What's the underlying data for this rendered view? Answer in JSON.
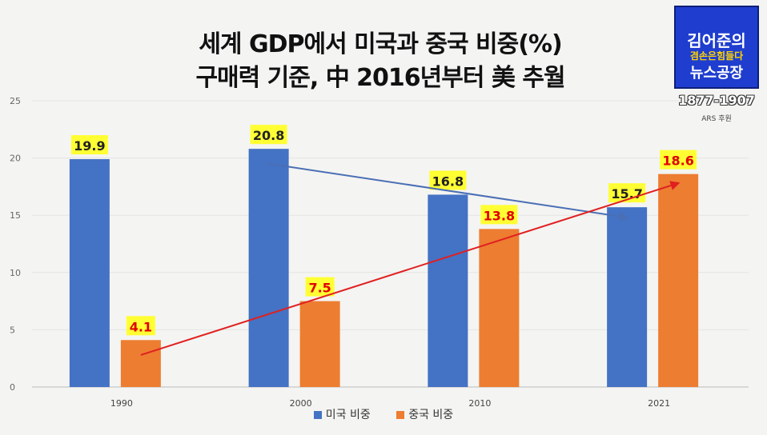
{
  "title_line1": "세계 GDP에서 미국과 중국 비중(%)",
  "title_line2": "구매력 기준, 中 2016년부터 美 추월",
  "logo": {
    "name": "김어준의",
    "slogan": "겸손은힘들다",
    "show": "뉴스공장",
    "years": "1877-1907",
    "credit": "ARS 후원"
  },
  "chart_data": {
    "type": "bar",
    "categories": [
      "1990",
      "2000",
      "2010",
      "2021"
    ],
    "series": [
      {
        "name": "미국 비중",
        "values": [
          19.9,
          20.8,
          16.8,
          15.7
        ],
        "color": "#4472c4",
        "label_color": "#222222"
      },
      {
        "name": "중국 비중",
        "values": [
          4.1,
          7.5,
          13.8,
          18.6
        ],
        "color": "#ed7d31",
        "label_color": "#e00000"
      }
    ],
    "ylim": [
      0,
      25
    ],
    "yticks": [
      0,
      5,
      10,
      15,
      20,
      25
    ],
    "grid": true,
    "legend": "bottom",
    "label_bg": "#ffff33",
    "trend_arrows": [
      {
        "series": "미국 비중",
        "from": {
          "category": "2000",
          "value": 19.5
        },
        "to": {
          "category": "2021",
          "value": 14.8
        },
        "color": "#4a6fb5"
      },
      {
        "series": "중국 비중",
        "from": {
          "category": "1990",
          "value": 2.8
        },
        "to": {
          "category": "2021",
          "value": 17.8
        },
        "color": "#e02020"
      }
    ]
  }
}
